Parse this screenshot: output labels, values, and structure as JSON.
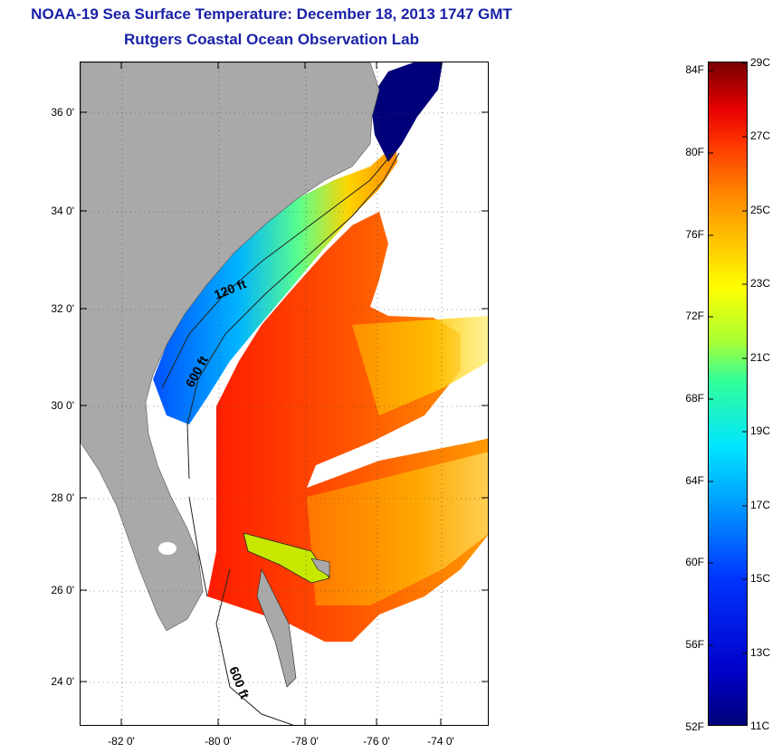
{
  "title_line1": "NOAA-19 Sea Surface Temperature:  December 18, 2013 1747 GMT",
  "title_line2": "Rutgers Coastal Ocean Observation Lab",
  "lat_labels": [
    "36 0'",
    "34 0'",
    "32 0'",
    "30 0'",
    "28 0'",
    "26 0'",
    "24 0'"
  ],
  "lon_labels": [
    "-82 0'",
    "-80 0'",
    "-78 0'",
    "-76 0'",
    "-74 0'"
  ],
  "contours": [
    "120 ft",
    "600 ft",
    "600 ft"
  ],
  "colorbar": {
    "fahrenheit": [
      "84F",
      "80F",
      "76F",
      "72F",
      "68F",
      "64F",
      "60F",
      "56F",
      "52F"
    ],
    "celsius": [
      "29C",
      "27C",
      "25C",
      "23C",
      "21C",
      "19C",
      "17C",
      "15C",
      "13C",
      "11C"
    ]
  },
  "colors": {
    "land": "#a9a9a9",
    "title": "#1a22a8",
    "sound": "#00007a"
  }
}
